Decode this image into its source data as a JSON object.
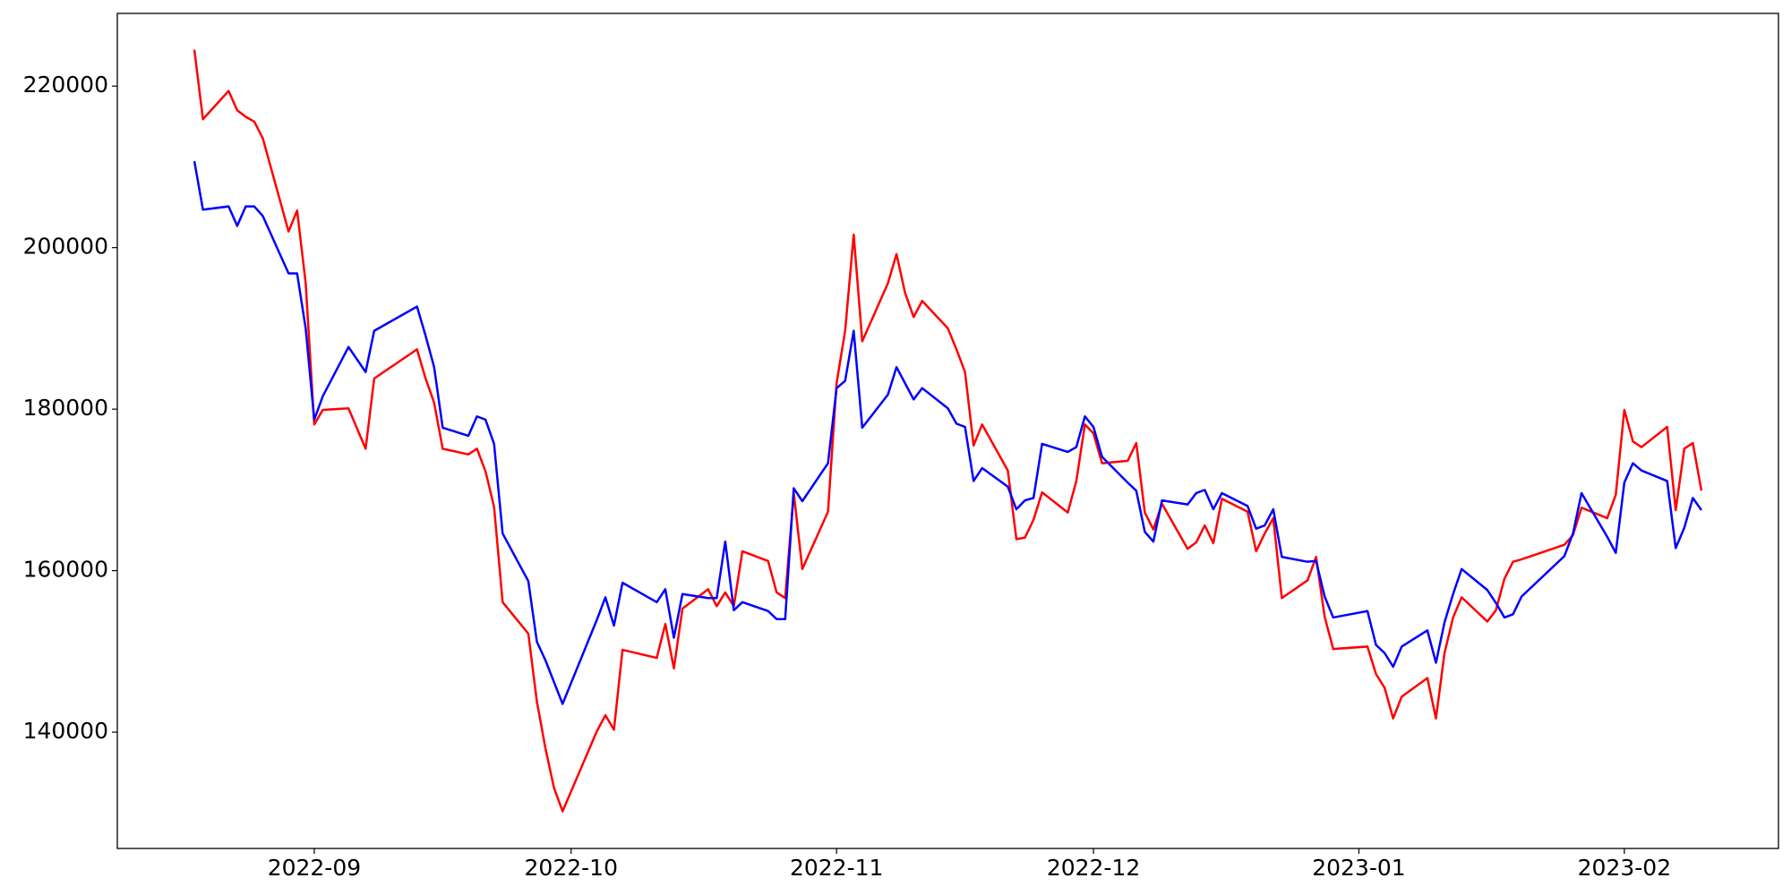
{
  "chart_data": {
    "type": "line",
    "x": [
      "2022-08-18",
      "2022-08-19",
      "2022-08-22",
      "2022-08-23",
      "2022-08-24",
      "2022-08-25",
      "2022-08-26",
      "2022-08-29",
      "2022-08-30",
      "2022-08-31",
      "2022-09-01",
      "2022-09-02",
      "2022-09-05",
      "2022-09-07",
      "2022-09-08",
      "2022-09-13",
      "2022-09-14",
      "2022-09-15",
      "2022-09-16",
      "2022-09-19",
      "2022-09-20",
      "2022-09-21",
      "2022-09-22",
      "2022-09-23",
      "2022-09-26",
      "2022-09-27",
      "2022-09-28",
      "2022-09-29",
      "2022-09-30",
      "2022-10-04",
      "2022-10-05",
      "2022-10-06",
      "2022-10-07",
      "2022-10-11",
      "2022-10-12",
      "2022-10-13",
      "2022-10-14",
      "2022-10-17",
      "2022-10-18",
      "2022-10-19",
      "2022-10-20",
      "2022-10-21",
      "2022-10-24",
      "2022-10-25",
      "2022-10-26",
      "2022-10-27",
      "2022-10-28",
      "2022-10-31",
      "2022-11-01",
      "2022-11-02",
      "2022-11-03",
      "2022-11-04",
      "2022-11-07",
      "2022-11-08",
      "2022-11-09",
      "2022-11-10",
      "2022-11-11",
      "2022-11-14",
      "2022-11-15",
      "2022-11-16",
      "2022-11-17",
      "2022-11-18",
      "2022-11-21",
      "2022-11-22",
      "2022-11-23",
      "2022-11-24",
      "2022-11-25",
      "2022-11-28",
      "2022-11-29",
      "2022-11-30",
      "2022-12-01",
      "2022-12-02",
      "2022-12-05",
      "2022-12-06",
      "2022-12-07",
      "2022-12-08",
      "2022-12-09",
      "2022-12-12",
      "2022-12-13",
      "2022-12-14",
      "2022-12-15",
      "2022-12-16",
      "2022-12-19",
      "2022-12-20",
      "2022-12-21",
      "2022-12-22",
      "2022-12-23",
      "2022-12-26",
      "2022-12-27",
      "2022-12-28",
      "2022-12-29",
      "2023-01-02",
      "2023-01-03",
      "2023-01-04",
      "2023-01-05",
      "2023-01-06",
      "2023-01-09",
      "2023-01-10",
      "2023-01-11",
      "2023-01-12",
      "2023-01-13",
      "2023-01-16",
      "2023-01-17",
      "2023-01-18",
      "2023-01-19",
      "2023-01-20",
      "2023-01-25",
      "2023-01-26",
      "2023-01-27",
      "2023-01-30",
      "2023-01-31",
      "2023-02-01",
      "2023-02-02",
      "2023-02-03",
      "2023-02-06",
      "2023-02-07",
      "2023-02-08",
      "2023-02-09",
      "2023-02-10"
    ],
    "series": [
      {
        "color": "#ff0000",
        "values": [
          224500,
          215900,
          219400,
          217000,
          216200,
          215600,
          213500,
          202000,
          204600,
          195600,
          178100,
          179900,
          180100,
          175100,
          183800,
          187400,
          183800,
          180800,
          175100,
          174400,
          175100,
          172300,
          167900,
          156100,
          152200,
          143800,
          138000,
          133100,
          130200,
          140100,
          142100,
          140300,
          150200,
          149200,
          153400,
          147900,
          155300,
          157700,
          155600,
          157300,
          155600,
          162400,
          161200,
          157300,
          156600,
          169600,
          160200,
          167300,
          183200,
          189700,
          201600,
          188400,
          195600,
          199200,
          194400,
          191400,
          193400,
          190000,
          187400,
          184600,
          175500,
          178100,
          172400,
          163900,
          164100,
          166300,
          169700,
          167200,
          171100,
          178100,
          177000,
          173300,
          173600,
          175800,
          167200,
          165100,
          168300,
          162700,
          163500,
          165600,
          163400,
          168900,
          167300,
          162400,
          164600,
          166500,
          156600,
          158800,
          161700,
          154300,
          150300,
          150600,
          147200,
          145500,
          141700,
          144400,
          146700,
          141700,
          149800,
          154200,
          156700,
          153700,
          155100,
          159000,
          161100,
          161400,
          163200,
          164400,
          167800,
          166500,
          169400,
          179900,
          176000,
          175300,
          177800,
          167500,
          175100,
          175800,
          169900
        ]
      },
      {
        "color": "#0000ff",
        "values": [
          210700,
          204700,
          205100,
          202700,
          205100,
          205100,
          203900,
          196800,
          196800,
          190000,
          178700,
          181600,
          187700,
          184600,
          189700,
          192700,
          189100,
          185200,
          177700,
          176700,
          179100,
          178700,
          175700,
          164600,
          158700,
          151200,
          148900,
          146200,
          143500,
          153900,
          156700,
          153200,
          158500,
          156100,
          157700,
          151700,
          157100,
          156600,
          156600,
          163600,
          155100,
          156100,
          155000,
          154000,
          154000,
          170200,
          168600,
          173300,
          182600,
          183500,
          189700,
          177700,
          181800,
          185200,
          183200,
          181200,
          182600,
          180100,
          178200,
          177800,
          171100,
          172700,
          170400,
          167600,
          168700,
          169000,
          175700,
          174700,
          175300,
          179100,
          177800,
          174100,
          170900,
          169900,
          164800,
          163600,
          168700,
          168200,
          169600,
          170000,
          167600,
          169600,
          168000,
          165200,
          165600,
          167600,
          161700,
          161100,
          161200,
          156800,
          154200,
          155000,
          150800,
          149800,
          148100,
          150600,
          152600,
          148600,
          153600,
          157100,
          160200,
          157600,
          156000,
          154200,
          154600,
          156800,
          161800,
          164600,
          169600,
          164200,
          162200,
          170900,
          173300,
          172400,
          171100,
          162800,
          165300,
          169000,
          167500
        ]
      }
    ],
    "xlim": [
      "2022-08-09",
      "2023-02-19"
    ],
    "xticks": [
      {
        "value": "2022-09-01",
        "label": "2022-09"
      },
      {
        "value": "2022-10-01",
        "label": "2022-10"
      },
      {
        "value": "2022-11-01",
        "label": "2022-11"
      },
      {
        "value": "2022-12-01",
        "label": "2022-12"
      },
      {
        "value": "2023-01-01",
        "label": "2023-01"
      },
      {
        "value": "2023-02-01",
        "label": "2023-02"
      }
    ],
    "ylim": [
      125600,
      229000
    ],
    "yticks": [
      140000,
      160000,
      180000,
      200000,
      220000
    ],
    "grid": false
  }
}
